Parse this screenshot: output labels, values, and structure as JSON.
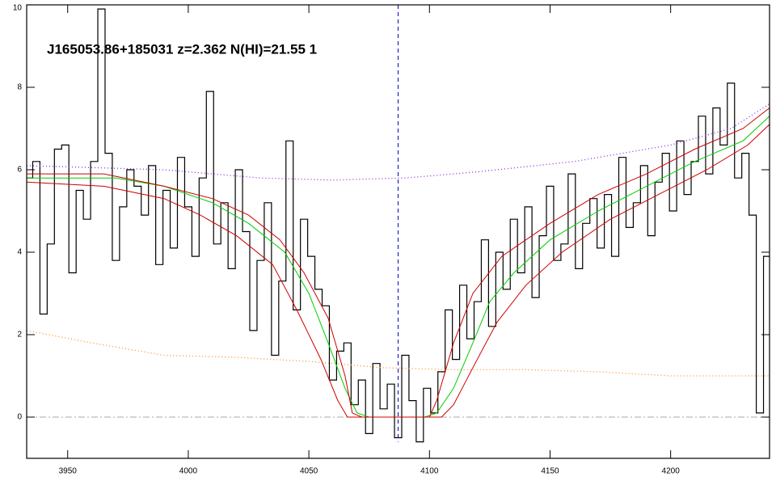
{
  "chart_data": {
    "type": "line",
    "title": "J165053.86+185031 z=2.362 N(HI)=21.55 1",
    "xlim": [
      3933,
      4241
    ],
    "ylim": [
      -1,
      10
    ],
    "xticks": [
      3950,
      4000,
      4050,
      4100,
      4150,
      4200
    ],
    "yticks": [
      0,
      2,
      4,
      6,
      8,
      10
    ],
    "reference_x": 4087,
    "zero_line": 0,
    "series": [
      {
        "color": "#000000",
        "style": "step",
        "x": [
          3934,
          3937,
          3940,
          3943,
          3946,
          3949,
          3952,
          3955,
          3958,
          3961,
          3964,
          3967,
          3970,
          3973,
          3976,
          3979,
          3982,
          3985,
          3988,
          3991,
          3994,
          3997,
          4000,
          4003,
          4006,
          4009,
          4012,
          4015,
          4018,
          4021,
          4024,
          4027,
          4030,
          4033,
          4036,
          4039,
          4042,
          4045,
          4048,
          4051,
          4054,
          4057,
          4060,
          4063,
          4066,
          4069,
          4072,
          4075,
          4078,
          4081,
          4084,
          4087,
          4090,
          4093,
          4096,
          4099,
          4102,
          4105,
          4108,
          4111,
          4114,
          4117,
          4120,
          4123,
          4126,
          4129,
          4132,
          4135,
          4138,
          4141,
          4144,
          4147,
          4150,
          4153,
          4156,
          4159,
          4162,
          4165,
          4168,
          4171,
          4174,
          4177,
          4180,
          4183,
          4186,
          4189,
          4192,
          4195,
          4198,
          4201,
          4204,
          4207,
          4210,
          4213,
          4216,
          4219,
          4222,
          4225,
          4228,
          4231,
          4234,
          4237,
          4240
        ],
        "values": [
          5.8,
          6.2,
          2.5,
          4.2,
          6.5,
          6.6,
          3.5,
          5.5,
          4.8,
          6.2,
          9.9,
          6.4,
          3.8,
          5.1,
          6.0,
          5.6,
          4.9,
          6.1,
          3.7,
          5.5,
          4.1,
          6.3,
          5.1,
          3.9,
          5.8,
          7.9,
          4.2,
          5.2,
          3.6,
          6.0,
          4.5,
          2.1,
          3.8,
          5.2,
          1.5,
          3.3,
          6.7,
          2.6,
          4.8,
          3.9,
          3.1,
          2.7,
          0.9,
          1.6,
          1.8,
          0.3,
          0.9,
          -0.4,
          1.3,
          0.2,
          0.8,
          -0.5,
          1.5,
          0.4,
          -0.6,
          0.7,
          0.1,
          1.1,
          2.6,
          1.4,
          3.2,
          1.9,
          2.8,
          4.3,
          2.2,
          4.0,
          3.1,
          4.8,
          3.5,
          5.1,
          2.9,
          4.4,
          5.6,
          3.8,
          4.2,
          5.9,
          3.6,
          4.7,
          5.3,
          4.1,
          5.4,
          3.9,
          6.3,
          4.6,
          5.2,
          6.1,
          4.4,
          5.7,
          6.4,
          5.0,
          6.7,
          5.4,
          6.2,
          7.3,
          5.9,
          7.5,
          6.6,
          8.1,
          5.8,
          6.4,
          4.9,
          0.1,
          3.9
        ]
      },
      {
        "color": "#ff8c1a",
        "style": "dotted",
        "x": [
          3933,
          3960,
          3990,
          4020,
          4050,
          4080,
          4110,
          4140,
          4170,
          4200,
          4241
        ],
        "values": [
          2.1,
          1.8,
          1.5,
          1.45,
          1.35,
          1.2,
          1.15,
          1.15,
          1.1,
          1.0,
          1.0
        ]
      },
      {
        "color": "#8a2be2",
        "style": "dotted",
        "x": [
          3933,
          3990,
          4030,
          4060,
          4090,
          4120,
          4160,
          4200,
          4225,
          4241
        ],
        "values": [
          6.1,
          6.0,
          5.8,
          5.75,
          5.8,
          5.95,
          6.2,
          6.6,
          7.0,
          7.6
        ]
      },
      {
        "color": "#00cc00",
        "style": "solid",
        "x": [
          3933,
          3970,
          3990,
          4010,
          4025,
          4040,
          4050,
          4058,
          4065,
          4070,
          4075,
          4098,
          4103,
          4110,
          4118,
          4125,
          4135,
          4150,
          4170,
          4190,
          4210,
          4230,
          4241
        ],
        "values": [
          5.8,
          5.8,
          5.6,
          5.2,
          4.7,
          4.0,
          3.0,
          1.8,
          0.7,
          0.1,
          0,
          0,
          0.1,
          0.7,
          1.8,
          2.8,
          3.5,
          4.3,
          5.0,
          5.6,
          6.2,
          6.7,
          7.3
        ]
      },
      {
        "color": "#cc0000",
        "style": "solid",
        "x": [
          3933,
          3965,
          3990,
          4010,
          4025,
          4038,
          4048,
          4058,
          4065,
          4068,
          4072,
          4100,
          4103,
          4110,
          4118,
          4130,
          4150,
          4170,
          4190,
          4210,
          4230,
          4241
        ],
        "values": [
          5.9,
          5.9,
          5.6,
          5.3,
          4.9,
          4.3,
          3.5,
          2.4,
          1.0,
          0.1,
          0,
          0,
          0.4,
          1.8,
          3.0,
          3.9,
          4.7,
          5.4,
          5.9,
          6.5,
          7.0,
          7.5
        ]
      },
      {
        "color": "#cc0000",
        "style": "solid",
        "x": [
          3933,
          3965,
          3990,
          4005,
          4020,
          4035,
          4045,
          4055,
          4062,
          4066,
          4105,
          4110,
          4118,
          4128,
          4140,
          4155,
          4175,
          4195,
          4215,
          4232,
          4241
        ],
        "values": [
          5.7,
          5.6,
          5.3,
          4.9,
          4.4,
          3.7,
          2.6,
          1.4,
          0.4,
          0,
          0,
          0.3,
          1.2,
          2.3,
          3.2,
          4.0,
          4.8,
          5.4,
          6.0,
          6.6,
          7.1
        ]
      }
    ]
  }
}
